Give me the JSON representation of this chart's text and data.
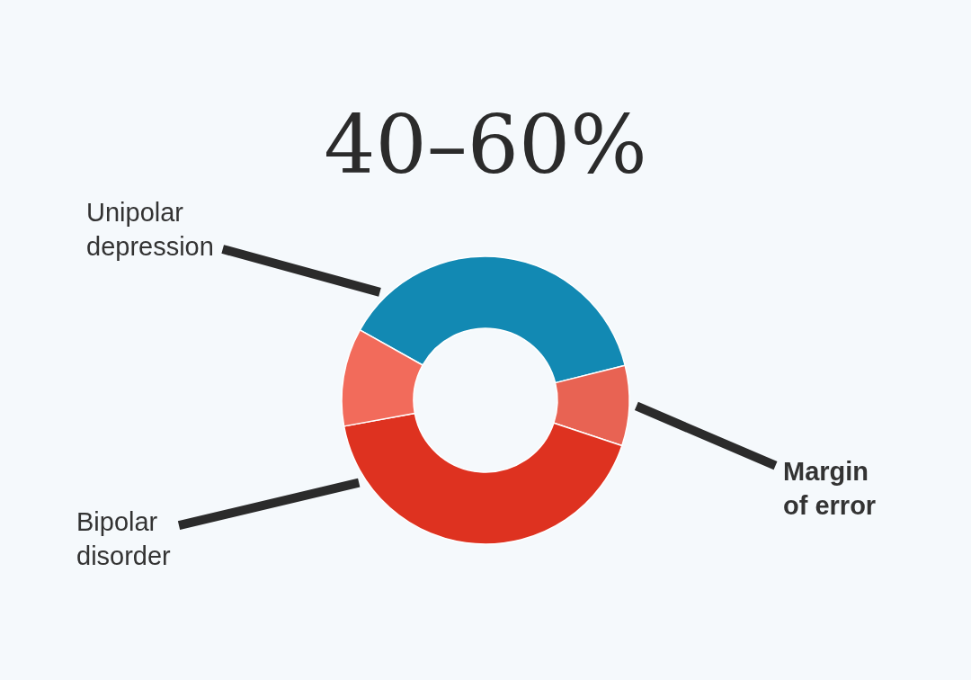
{
  "chart_data": {
    "type": "donut",
    "title": "40–60%",
    "categories": [
      "Unipolar depression",
      "Margin of error",
      "Bipolar disorder",
      null
    ],
    "values": [
      38,
      9,
      42,
      11
    ],
    "colors": [
      "#1289b3",
      "#e86353",
      "#de3220",
      "#f26b5b"
    ]
  }
}
